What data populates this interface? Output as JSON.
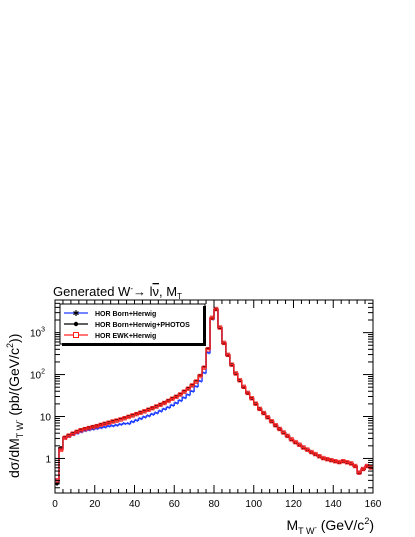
{
  "chart_data": {
    "type": "line",
    "title": {
      "prefix": "Generated W",
      "sup": "-",
      "arrow": "→",
      "lepton": "l",
      "nubar": "ν",
      "suffix": ", M",
      "sub": "T"
    },
    "xlabel": {
      "main": "M",
      "sub": "T W",
      "subsup": "-",
      "rest": " (GeV/c",
      "sup": "2",
      "close": ")"
    },
    "ylabel": {
      "a": "dσ/dM",
      "sub": "T W",
      "subsup": "-",
      "b": " (pb/(GeV/c",
      "sup": "2",
      "close": "))"
    },
    "xlim": [
      0,
      160
    ],
    "ylim": [
      0.15,
      6000
    ],
    "yscale": "log",
    "x_ticks": [
      0,
      20,
      40,
      60,
      80,
      100,
      120,
      140,
      160
    ],
    "y_ticks": [
      {
        "value": 1,
        "base": "1",
        "exp": ""
      },
      {
        "value": 10,
        "base": "10",
        "exp": ""
      },
      {
        "value": 100,
        "base": "10",
        "exp": "2"
      },
      {
        "value": 1000,
        "base": "10",
        "exp": "3"
      }
    ],
    "bin_width": 2,
    "x": [
      1,
      3,
      5,
      7,
      9,
      11,
      13,
      15,
      17,
      19,
      21,
      23,
      25,
      27,
      29,
      31,
      33,
      35,
      37,
      39,
      41,
      43,
      45,
      47,
      49,
      51,
      53,
      55,
      57,
      59,
      61,
      63,
      65,
      67,
      69,
      71,
      73,
      75,
      77,
      79,
      81,
      83,
      85,
      87,
      89,
      91,
      93,
      95,
      97,
      99,
      101,
      103,
      105,
      107,
      109,
      111,
      113,
      115,
      117,
      119,
      121,
      123,
      125,
      127,
      129,
      131,
      133,
      135,
      137,
      139,
      141,
      143,
      145,
      147,
      149,
      151,
      153,
      155,
      157,
      159
    ],
    "series": [
      {
        "name": "HOR Born+Herwig",
        "color": "#1f3cff",
        "marker": "star",
        "values": [
          0.3,
          1.7,
          3.1,
          3.4,
          3.7,
          4.0,
          4.3,
          4.6,
          4.8,
          5.0,
          5.2,
          5.4,
          5.6,
          5.9,
          6.0,
          6.2,
          6.5,
          6.8,
          6.8,
          7.5,
          8.1,
          8.9,
          9.7,
          10.4,
          11.3,
          12.2,
          13.5,
          15.0,
          16.5,
          18.5,
          21,
          24,
          28,
          33,
          40,
          52,
          70,
          110,
          330,
          2100,
          3600,
          1300,
          560,
          290,
          170,
          105,
          72,
          50,
          36,
          27,
          20,
          15,
          12,
          9.5,
          7.6,
          6.1,
          5.0,
          4.1,
          3.4,
          2.8,
          2.4,
          2.1,
          1.8,
          1.6,
          1.4,
          1.25,
          1.12,
          1.0,
          0.95,
          0.9,
          0.85,
          0.8,
          0.85,
          0.8,
          0.75,
          0.65,
          0.45,
          0.55,
          0.65,
          0.6
        ]
      },
      {
        "name": "HOR Born+Herwig+PHOTOS",
        "color": "#000000",
        "marker": "circle",
        "values": [
          0.25,
          1.8,
          3.2,
          3.6,
          4.0,
          4.4,
          4.8,
          5.1,
          5.4,
          5.7,
          6.0,
          6.4,
          6.8,
          7.2,
          7.7,
          8.2,
          8.7,
          9.3,
          10.0,
          10.8,
          11.6,
          12.5,
          13.5,
          14.7,
          16.0,
          17.5,
          19.2,
          21.3,
          24,
          27,
          30,
          34,
          40,
          47,
          56,
          70,
          95,
          150,
          420,
          2200,
          3600,
          1300,
          560,
          290,
          170,
          105,
          72,
          50,
          36,
          27,
          20,
          15,
          12,
          9.5,
          7.6,
          6.1,
          5.0,
          4.1,
          3.4,
          2.8,
          2.4,
          2.1,
          1.8,
          1.6,
          1.4,
          1.25,
          1.12,
          1.0,
          0.95,
          0.9,
          0.85,
          0.8,
          0.85,
          0.8,
          0.75,
          0.65,
          0.45,
          0.55,
          0.65,
          0.6
        ]
      },
      {
        "name": "HOR EWK+Herwig",
        "color": "#ff2020",
        "marker": "open-square",
        "values": [
          0.3,
          1.6,
          3.1,
          3.5,
          3.9,
          4.3,
          4.7,
          5.0,
          5.3,
          5.6,
          5.9,
          6.3,
          6.7,
          7.1,
          7.6,
          8.0,
          8.5,
          9.1,
          9.8,
          10.6,
          11.4,
          12.3,
          13.3,
          14.5,
          15.8,
          17.3,
          19.0,
          21.0,
          23.5,
          26.5,
          29.5,
          33.5,
          39,
          46,
          55,
          68,
          92,
          145,
          400,
          2250,
          3650,
          1320,
          570,
          295,
          172,
          106,
          73,
          51,
          36.5,
          27.2,
          20.2,
          15.2,
          12.1,
          9.6,
          7.7,
          6.2,
          5.05,
          4.15,
          3.45,
          2.85,
          2.45,
          2.12,
          1.82,
          1.62,
          1.42,
          1.27,
          1.13,
          1.02,
          0.96,
          0.91,
          0.86,
          0.82,
          0.86,
          0.81,
          0.76,
          0.66,
          0.46,
          0.56,
          0.66,
          0.61
        ]
      }
    ],
    "legend_position": "top-left"
  }
}
